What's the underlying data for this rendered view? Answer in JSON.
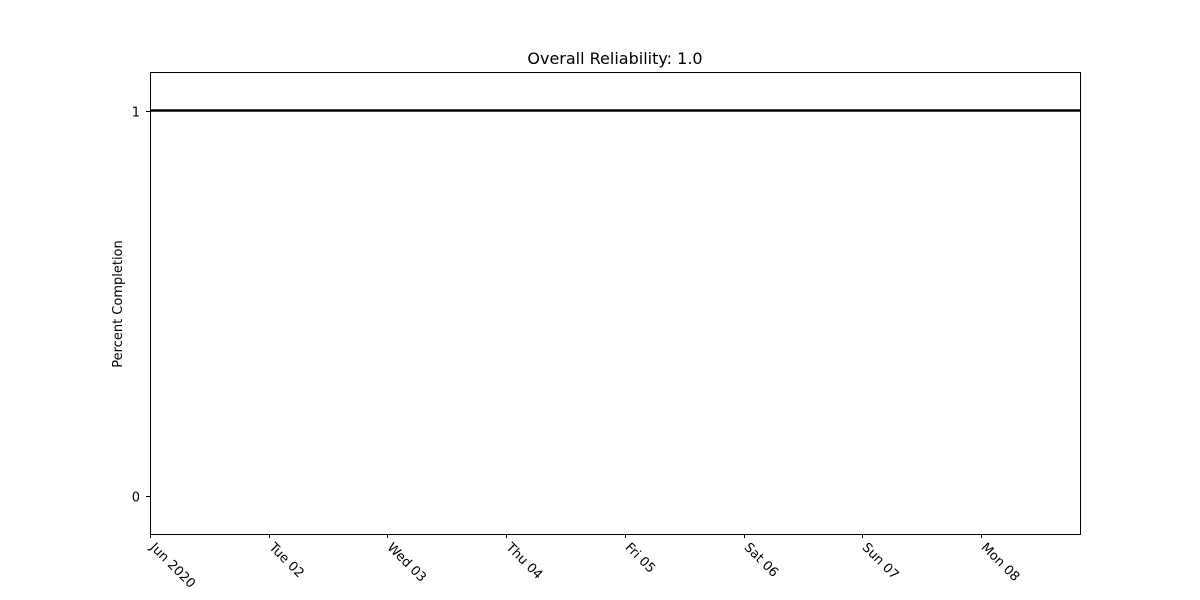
{
  "chart_data": {
    "type": "line",
    "title": "Overall Reliability: 1.0",
    "xlabel": "",
    "ylabel": "Percent Completion",
    "x_ticks": [
      "Jun 2020",
      "Tue 02",
      "Wed 03",
      "Thu 04",
      "Fri 05",
      "Sat 06",
      "Sun 07",
      "Mon 08"
    ],
    "x_tick_dates": [
      "2020-06-01",
      "2020-06-02",
      "2020-06-03",
      "2020-06-04",
      "2020-06-05",
      "2020-06-06",
      "2020-06-07",
      "2020-06-08"
    ],
    "xlim": [
      "2020-06-01",
      "2020-06-08T20:00"
    ],
    "y_ticks": [
      "0",
      "1"
    ],
    "y_tick_values": [
      0,
      1
    ],
    "ylim": [
      -0.1,
      1.1
    ],
    "series": [
      {
        "x": [
          "2020-06-01",
          "2020-06-08T20:00"
        ],
        "values": [
          1,
          1
        ],
        "color": "#000000"
      }
    ],
    "grid": false,
    "legend": "none"
  }
}
